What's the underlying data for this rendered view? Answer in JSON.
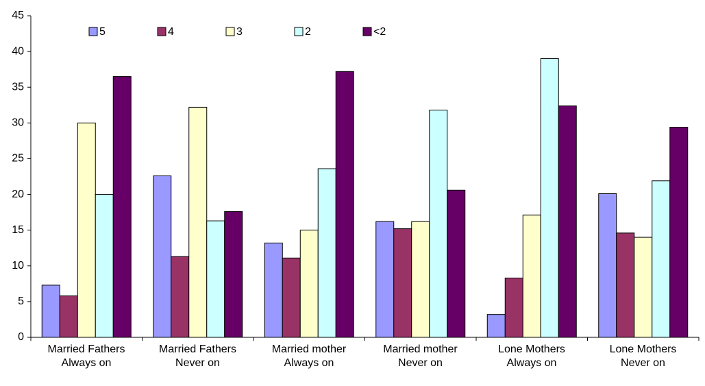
{
  "chart_data": {
    "type": "bar",
    "categories": [
      "Married Fathers\nAlways on",
      "Married Fathers\nNever on",
      "Married mother\nAlways on",
      "Married mother\nNever on",
      "Lone Mothers\nAlways on",
      "Lone Mothers\nNever on"
    ],
    "series": [
      {
        "name": "5",
        "color": "#9999ff",
        "values": [
          7.3,
          22.6,
          13.2,
          16.2,
          3.2,
          20.1
        ]
      },
      {
        "name": "4",
        "color": "#993366",
        "values": [
          5.8,
          11.3,
          11.1,
          15.2,
          8.3,
          14.6
        ]
      },
      {
        "name": "3",
        "color": "#ffffcc",
        "values": [
          30,
          32.2,
          15,
          16.2,
          17.1,
          14
        ]
      },
      {
        "name": "2",
        "color": "#ccffff",
        "values": [
          20,
          16.3,
          23.6,
          31.8,
          39,
          21.9
        ]
      },
      {
        "name": "<2",
        "color": "#660066",
        "values": [
          36.5,
          17.6,
          37.2,
          20.6,
          32.4,
          29.4
        ]
      }
    ],
    "ylim": [
      0,
      45
    ],
    "yticks": [
      0,
      5,
      10,
      15,
      20,
      25,
      30,
      35,
      40,
      45
    ],
    "grid": false,
    "legend": "top"
  }
}
